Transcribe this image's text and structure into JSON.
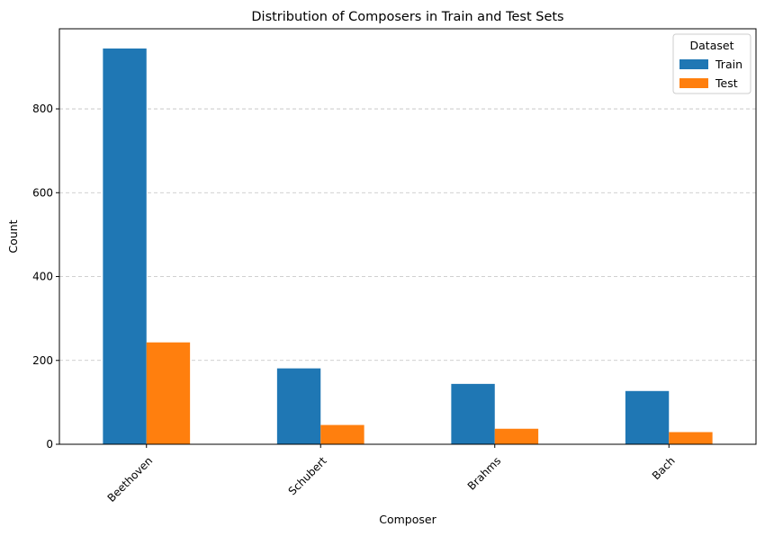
{
  "chart_data": {
    "type": "bar",
    "title": "Distribution of Composers in Train and Test Sets",
    "xlabel": "Composer",
    "ylabel": "Count",
    "categories": [
      "Beethoven",
      "Schubert",
      "Brahms",
      "Bach"
    ],
    "series": [
      {
        "name": "Train",
        "values": [
          944,
          181,
          144,
          127
        ],
        "color": "#1f77b4"
      },
      {
        "name": "Test",
        "values": [
          243,
          46,
          37,
          29
        ],
        "color": "#ff7f0e"
      }
    ],
    "ylim": [
      0,
      991
    ],
    "yticks": [
      0,
      200,
      400,
      600,
      800
    ],
    "ytick_labels": [
      "0",
      "200",
      "400",
      "600",
      "800"
    ],
    "grid": "y-dashed",
    "legend": {
      "title": "Dataset",
      "placement": "top-right"
    },
    "xtick_rotation": 45
  }
}
